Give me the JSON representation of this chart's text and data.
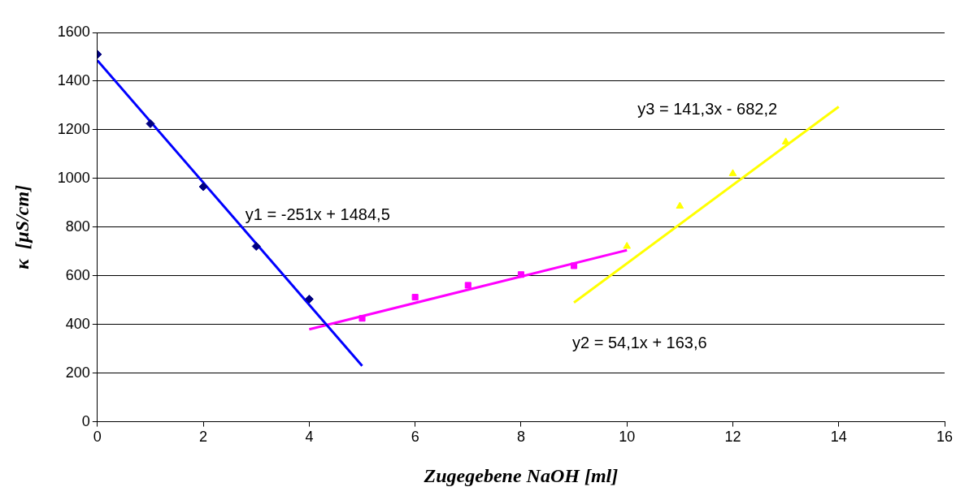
{
  "chart_data": {
    "type": "scatter",
    "xlabel": "Zugegebene NaOH [ml]",
    "ylabel": "κ  [µS/cm]",
    "xlim": [
      0,
      16
    ],
    "xticks": [
      0,
      2,
      4,
      6,
      8,
      10,
      12,
      14,
      16
    ],
    "ylim": [
      0,
      1600
    ],
    "yticks": [
      0,
      200,
      400,
      600,
      800,
      1000,
      1200,
      1400,
      1600
    ],
    "grid": "y",
    "legend": false,
    "series": [
      {
        "type": "scatter",
        "color": "#000080",
        "marker": "diamond",
        "x": [
          0,
          1,
          2,
          3,
          4
        ],
        "values": [
          1510,
          1225,
          966,
          721,
          504
        ]
      },
      {
        "type": "scatter",
        "color": "#ff00ff",
        "marker": "square",
        "x": [
          5,
          6,
          7,
          8,
          9
        ],
        "values": [
          425,
          512,
          561,
          605,
          641
        ]
      },
      {
        "type": "scatter",
        "color": "#ffff00",
        "marker": "triangle",
        "x": [
          10,
          11,
          12,
          13
        ],
        "values": [
          721,
          886,
          1020,
          1150
        ]
      },
      {
        "type": "line",
        "color": "#0000ff",
        "marker": "none",
        "x": [
          0,
          5
        ],
        "values": [
          1485,
          230
        ]
      },
      {
        "type": "line",
        "color": "#ff00ff",
        "marker": "none",
        "x": [
          4,
          10
        ],
        "values": [
          380,
          705
        ]
      },
      {
        "type": "line",
        "color": "#ffff00",
        "marker": "none",
        "x": [
          9,
          14
        ],
        "values": [
          490,
          1295
        ]
      }
    ],
    "annotations": [
      "y1 = -251x + 1484,5",
      "y2 = 54,1x + 163,6",
      "y3 = 141,3x - 682,2"
    ]
  }
}
